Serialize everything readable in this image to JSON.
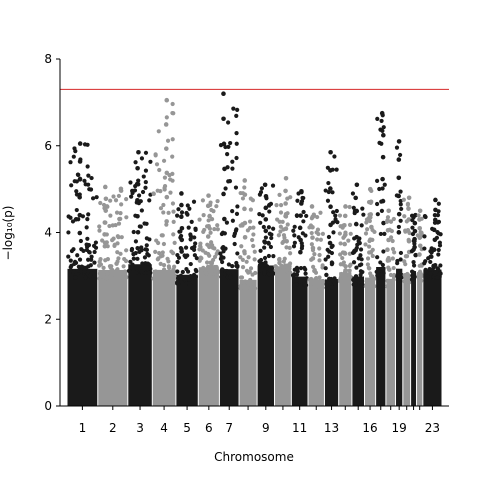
{
  "chart_data": {
    "type": "scatter",
    "subtype": "manhattan",
    "title": "",
    "xlabel": "Chromosome",
    "ylabel": "−log₁₀(p)",
    "ylim": [
      0,
      8
    ],
    "yticks": [
      0,
      2,
      4,
      6,
      8
    ],
    "grid": false,
    "legend": "none",
    "significance_line": {
      "y": 7.3,
      "color": "#d62728"
    },
    "colors": {
      "odd": "#1a1a1a",
      "even": "#969696"
    },
    "chromosomes": [
      {
        "chr": 1,
        "label": "1",
        "length": 249,
        "peak": 6.05
      },
      {
        "chr": 2,
        "label": "2",
        "length": 243,
        "peak": 5.05
      },
      {
        "chr": 3,
        "label": "3",
        "length": 198,
        "peak": 5.85
      },
      {
        "chr": 4,
        "label": "4",
        "length": 191,
        "peak": 7.05
      },
      {
        "chr": 5,
        "label": "5",
        "length": 181,
        "peak": 4.9
      },
      {
        "chr": 6,
        "label": "6",
        "length": 171,
        "peak": 4.85
      },
      {
        "chr": 7,
        "label": "7",
        "length": 159,
        "peak": 7.2
      },
      {
        "chr": 8,
        "label": "",
        "length": 146,
        "peak": 5.2
      },
      {
        "chr": 9,
        "label": "9",
        "length": 141,
        "peak": 5.1
      },
      {
        "chr": 10,
        "label": "",
        "length": 136,
        "peak": 5.25
      },
      {
        "chr": 11,
        "label": "11",
        "length": 135,
        "peak": 4.95
      },
      {
        "chr": 12,
        "label": "",
        "length": 133,
        "peak": 4.6
      },
      {
        "chr": 13,
        "label": "13",
        "length": 115,
        "peak": 5.85
      },
      {
        "chr": 14,
        "label": "",
        "length": 107,
        "peak": 4.6
      },
      {
        "chr": 15,
        "label": "",
        "length": 102,
        "peak": 5.1
      },
      {
        "chr": 16,
        "label": "16",
        "length": 90,
        "peak": 5.0
      },
      {
        "chr": 17,
        "label": "",
        "length": 83,
        "peak": 6.75
      },
      {
        "chr": 18,
        "label": "",
        "length": 78,
        "peak": 4.5
      },
      {
        "chr": 19,
        "label": "19",
        "length": 59,
        "peak": 6.1
      },
      {
        "chr": 20,
        "label": "",
        "length": 63,
        "peak": 4.8
      },
      {
        "chr": 21,
        "label": "",
        "length": 48,
        "peak": 4.4
      },
      {
        "chr": 22,
        "label": "",
        "length": 51,
        "peak": 4.5
      },
      {
        "chr": 23,
        "label": "23",
        "length": 155,
        "peak": 4.75
      }
    ]
  }
}
